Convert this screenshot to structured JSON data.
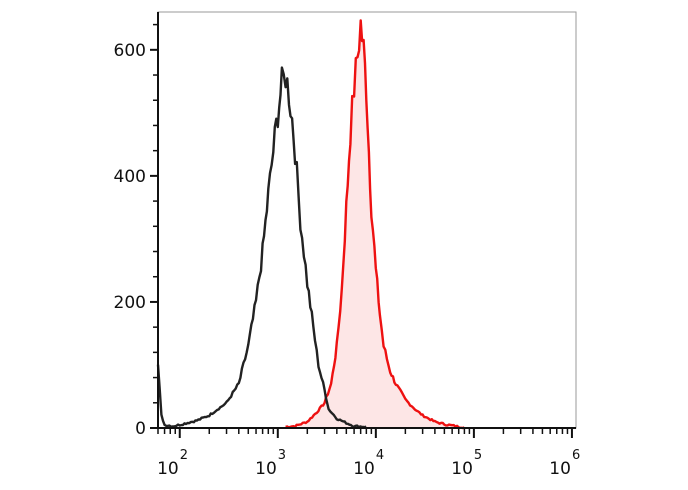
{
  "chart_data": {
    "type": "area",
    "title": "",
    "xlabel": "",
    "ylabel": "",
    "x_scale": "log",
    "xlim": [
      60,
      1100000
    ],
    "ylim": [
      0,
      660
    ],
    "y_ticks": [
      {
        "value": 0,
        "label": "0"
      },
      {
        "value": 200,
        "label": "200"
      },
      {
        "value": 400,
        "label": "400"
      },
      {
        "value": 600,
        "label": "600"
      }
    ],
    "x_ticks": [
      {
        "value": 100,
        "base": "10",
        "exp": "2"
      },
      {
        "value": 1000,
        "base": "10",
        "exp": "3"
      },
      {
        "value": 10000,
        "base": "10",
        "exp": "4"
      },
      {
        "value": 100000,
        "base": "10",
        "exp": "5"
      },
      {
        "value": 1000000,
        "base": "10",
        "exp": "6"
      }
    ],
    "grid": false,
    "series": [
      {
        "color": "#222222",
        "fill": "none",
        "x": [
          60,
          65,
          70,
          85,
          100,
          150,
          200,
          300,
          400,
          500,
          600,
          700,
          800,
          900,
          1000,
          1100,
          1200,
          1300,
          1400,
          1500,
          1700,
          2000,
          2300,
          2600,
          3000,
          3300,
          4000,
          5000,
          6000,
          8000
        ],
        "y": [
          100,
          20,
          5,
          3,
          5,
          12,
          20,
          40,
          70,
          130,
          200,
          280,
          370,
          440,
          500,
          545,
          560,
          530,
          490,
          440,
          330,
          230,
          160,
          100,
          60,
          30,
          15,
          8,
          3,
          2
        ]
      },
      {
        "color": "#ee1111",
        "fill": "#fde6e6",
        "x": [
          1200,
          1500,
          2000,
          2500,
          3000,
          3500,
          4000,
          4500,
          5000,
          5500,
          6000,
          6500,
          7000,
          7500,
          8000,
          8500,
          9000,
          10000,
          11000,
          12000,
          14000,
          16000,
          20000,
          25000,
          30000,
          40000,
          50000,
          60000,
          70000,
          80000
        ],
        "y": [
          2,
          3,
          10,
          25,
          40,
          70,
          130,
          220,
          350,
          470,
          540,
          590,
          640,
          600,
          540,
          440,
          350,
          250,
          180,
          130,
          90,
          70,
          45,
          30,
          20,
          10,
          6,
          4,
          2,
          1
        ]
      }
    ]
  }
}
